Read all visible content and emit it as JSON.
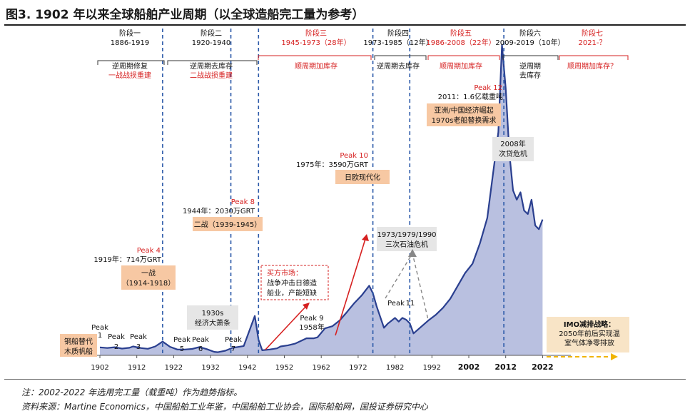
{
  "figure": {
    "title": "图3. 1902 年以来全球船舶产业周期（以全球造船完工量为参考）",
    "note": "注：2002-2022 年选用完工量（载重吨）作为趋势指标。",
    "source": "资料来源：Martine Economics，中国船舶工业年鉴，中国船舶工业协会，国际船舶网，国投证券研究中心"
  },
  "colors": {
    "area_fill": "#b9c0e0",
    "area_line": "#2a3f8f",
    "divider": "#2b59a8",
    "red": "#d62020",
    "callout_fill": "#f7c8a3",
    "grey_fill": "#e6e6e6"
  },
  "chart_data": {
    "type": "area",
    "xlim": [
      1900,
      2025
    ],
    "x_ticks": [
      "1902",
      "1912",
      "1922",
      "1932",
      "1942",
      "1952",
      "1962",
      "1972",
      "1982",
      "1992",
      "2002",
      "2012",
      "2022"
    ],
    "x_ticks_bold": [
      "2002",
      "2012",
      "2022"
    ],
    "series": [
      {
        "values": [
          [
            1902,
            4.1
          ],
          [
            1904,
            3.8
          ],
          [
            1906,
            4.2
          ],
          [
            1908,
            3.5
          ],
          [
            1910,
            3.9
          ],
          [
            1911,
            4.6
          ],
          [
            1913,
            3.8
          ],
          [
            1915,
            3.4
          ],
          [
            1917,
            4.6
          ],
          [
            1919,
            7.1
          ],
          [
            1921,
            4.4
          ],
          [
            1923,
            3.0
          ],
          [
            1925,
            3.0
          ],
          [
            1927,
            3.3
          ],
          [
            1929,
            4.3
          ],
          [
            1931,
            3.2
          ],
          [
            1933,
            1.8
          ],
          [
            1934,
            1.6
          ],
          [
            1936,
            2.4
          ],
          [
            1938,
            3.9
          ],
          [
            1941,
            4.8
          ],
          [
            1944,
            20.3
          ],
          [
            1945,
            8.0
          ],
          [
            1946,
            2.6
          ],
          [
            1948,
            3.0
          ],
          [
            1950,
            3.6
          ],
          [
            1951,
            4.6
          ],
          [
            1953,
            5.2
          ],
          [
            1955,
            6.1
          ],
          [
            1958,
            8.8
          ],
          [
            1960,
            8.8
          ],
          [
            1961,
            9.3
          ],
          [
            1963,
            13.9
          ],
          [
            1965,
            15.0
          ],
          [
            1967,
            18.0
          ],
          [
            1969,
            22.4
          ],
          [
            1971,
            27.0
          ],
          [
            1973,
            31.0
          ],
          [
            1975,
            35.9
          ],
          [
            1976,
            32.0
          ],
          [
            1977,
            25.3
          ],
          [
            1979,
            14.2
          ],
          [
            1980,
            16.3
          ],
          [
            1982,
            19.3
          ],
          [
            1983,
            17.4
          ],
          [
            1984,
            19.3
          ],
          [
            1985,
            18.4
          ],
          [
            1986,
            16.5
          ],
          [
            1987,
            11.3
          ],
          [
            1989,
            14.6
          ],
          [
            1991,
            17.9
          ],
          [
            1993,
            20.8
          ],
          [
            1995,
            24.5
          ],
          [
            1997,
            29.2
          ],
          [
            1999,
            35.8
          ],
          [
            2001,
            42.4
          ],
          [
            2003,
            47.2
          ],
          [
            2005,
            57.6
          ],
          [
            2007,
            70.8
          ],
          [
            2009,
            100.0
          ],
          [
            2010,
            115.0
          ],
          [
            2011,
            160.0
          ],
          [
            2012,
            137.7
          ],
          [
            2013,
            104.0
          ],
          [
            2014,
            85.0
          ],
          [
            2015,
            80.2
          ],
          [
            2016,
            84.0
          ],
          [
            2017,
            74.6
          ],
          [
            2018,
            72.8
          ],
          [
            2019,
            80.2
          ],
          [
            2020,
            66.9
          ],
          [
            2021,
            65.0
          ],
          [
            2022,
            70.0
          ]
        ]
      }
    ],
    "phases": [
      {
        "name": "阶段一",
        "years": "1886-1919",
        "text_lines": [
          "逆周期修复",
          "一战战损重建"
        ],
        "line_colors": [
          "black",
          "red"
        ]
      },
      {
        "name": "阶段二",
        "years": "1920-1940",
        "text_lines": [
          "逆周期去库存",
          "二战战损重建"
        ],
        "line_colors": [
          "black",
          "red"
        ]
      },
      {
        "name": "阶段三",
        "years": "1945-1973（28年）",
        "text_lines": [
          "顺周期加库存"
        ],
        "line_colors": [
          "red"
        ]
      },
      {
        "name": "阶段四",
        "years": "1973-1985（12年）",
        "text_lines": [
          "逆周期去库存"
        ],
        "line_colors": [
          "black"
        ]
      },
      {
        "name": "阶段五",
        "years": "1986-2008（22年）",
        "text_lines": [
          "顺周期加库存"
        ],
        "line_colors": [
          "red"
        ]
      },
      {
        "name": "阶段六",
        "years": "2009-2019（10年）",
        "text_lines": [
          "逆周期",
          "去库存"
        ],
        "line_colors": [
          "black",
          "black"
        ]
      },
      {
        "name": "阶段七",
        "years": "2021-？",
        "text_lines": [
          "顺周期加库存？"
        ],
        "line_colors": [
          "red"
        ]
      }
    ],
    "peak_labels": [
      "Peak",
      "1",
      "Peak",
      "2",
      "Peak",
      "3",
      "Peak",
      "5",
      "Peak",
      "6",
      "Peak",
      "7",
      "Peak",
      "11"
    ],
    "peak_callouts": [
      {
        "peak": "Peak  4",
        "value": "1919年：714万GRT",
        "event": [
          "一战",
          "（1914-1918）"
        ]
      },
      {
        "peak": "Peak  8",
        "value": "1944年：2030万GRT",
        "event": [
          "二战（1939-1945）"
        ]
      },
      {
        "peak": "Peak  9",
        "value": "1958年"
      },
      {
        "peak": "Peak  10",
        "value": "1975年：3590万GRT",
        "event": [
          "日欧现代化"
        ]
      },
      {
        "peak": "Peak  12",
        "value": "2011：1.6亿载重吨",
        "event": [
          "亚洲/中国经济崛起",
          "1970s老船替换需求"
        ]
      }
    ],
    "annotations": {
      "steel": [
        "钢船替代",
        "木质帆船"
      ],
      "depression": [
        "1930s",
        "经济大萧条"
      ],
      "buyer": [
        "买方市场：",
        "战争冲击日德造",
        "船业，产能短缺"
      ],
      "oil": [
        "1973/1979/1990",
        "三次石油危机"
      ],
      "crisis": [
        "2008年",
        "次贷危机"
      ],
      "imo": [
        "IMO减排战略：",
        "2050年前后实现温",
        "室气体净零排放"
      ]
    }
  }
}
